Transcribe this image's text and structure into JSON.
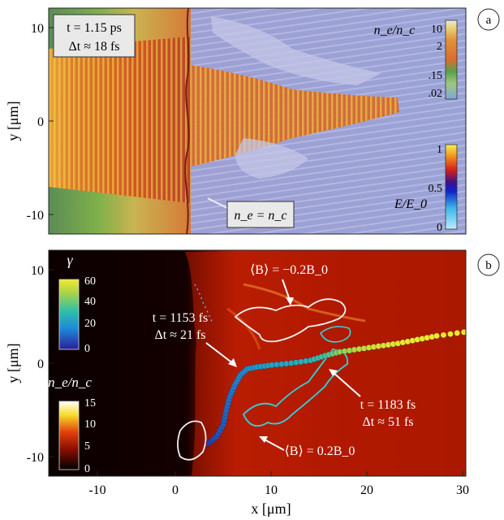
{
  "panels": [
    {
      "id": "a",
      "time_box": {
        "line1": "t = 1.15 ps",
        "line2": "Δt ≈ 18 fs"
      },
      "density_colorbar": {
        "label": "n_e/n_c",
        "ticks": [
          "10",
          "2",
          ".15",
          ".02"
        ],
        "scale": "log"
      },
      "field_colorbar": {
        "label": "E/E_0",
        "ticks": [
          "1",
          "0.5",
          "0"
        ]
      },
      "critical_label": "n_e = n_c",
      "y_ticks": [
        "10",
        "0",
        "-10"
      ],
      "ylabel": "y [μm]"
    },
    {
      "id": "b",
      "gamma_colorbar": {
        "label": "γ",
        "ticks": [
          "60",
          "40",
          "20",
          "0"
        ]
      },
      "density_colorbar": {
        "label": "n_e/n_c",
        "ticks": [
          "15",
          "10",
          "5",
          "0"
        ]
      },
      "annotations": {
        "bfield_neg": "⟨B⟩ = −0.2B_0",
        "bfield_pos": "⟨B⟩ = 0.2B_0",
        "t1_line1": "t = 1153 fs",
        "t1_line2": "Δt ≈ 21 fs",
        "t2_line1": "t = 1183 fs",
        "t2_line2": "Δt ≈ 51 fs"
      },
      "y_ticks": [
        "10",
        "0",
        "-10"
      ],
      "ylabel": "y [μm]"
    }
  ],
  "x_axis": {
    "label": "x [μm]",
    "ticks": [
      "-10",
      "0",
      "10",
      "20",
      "30"
    ]
  },
  "chart_data": {
    "type": "scatter",
    "title": "",
    "xlabel": "x [μm]",
    "ylabel": "y [μm]",
    "xlim": [
      -13,
      30
    ],
    "ylim": [
      -12,
      12
    ],
    "series": [
      {
        "name": "",
        "x": [
          3.5,
          4.3,
          5.0,
          5.3,
          5.7,
          6.2,
          6.8,
          7.5,
          8.5,
          10,
          12,
          14,
          15.5,
          17,
          19,
          21,
          23,
          25,
          27,
          29.8
        ],
        "y": [
          -8.5,
          -7.8,
          -6.5,
          -5,
          -3.5,
          -2.3,
          -1.2,
          -0.6,
          -0.4,
          -0.2,
          0,
          0.3,
          0.8,
          1.2,
          1.5,
          1.8,
          2.1,
          2.5,
          2.9,
          3.3
        ],
        "gamma": [
          5,
          8,
          10,
          12,
          14,
          16,
          18,
          20,
          22,
          24,
          26,
          30,
          35,
          45,
          52,
          56,
          58,
          59,
          60,
          60
        ]
      }
    ]
  },
  "colors": {
    "laser_red": "#d23a1f",
    "laser_yellow": "#f5e24a",
    "plasma_purple": "#9da0d0",
    "panel_b_dark": "#120000",
    "panel_b_red": "#b01800",
    "contour_white": "#f2f2f2",
    "contour_cyan": "#2bd6e0"
  }
}
